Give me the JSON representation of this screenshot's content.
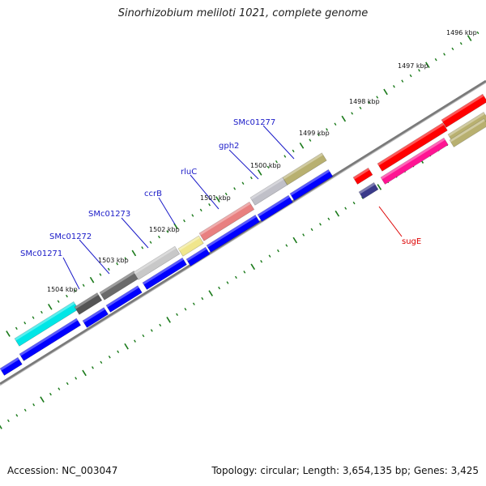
{
  "title": "Sinorhizobium meliloti 1021, complete genome",
  "footer": {
    "accession": "Accession: NC_003047",
    "stats": "Topology: circular; Length: 3,654,135 bp; Genes: 3,425"
  },
  "colors": {
    "backbone": "#7a7a7a",
    "tick": "#1a7a1a",
    "label_blue": "#1a1ac8",
    "label_red": "#dd0000"
  },
  "kbp_labels": [
    "1496 kbp",
    "1497 kbp",
    "1498 kbp",
    "1499 kbp",
    "1500 kbp",
    "1501 kbp",
    "1502 kbp",
    "1503 kbp",
    "1504 kbp"
  ],
  "gene_labels": [
    "SMc01277",
    "gph2",
    "rluC",
    "ccrB",
    "SMc01273",
    "SMc01272",
    "SMc01271",
    "sugE"
  ]
}
